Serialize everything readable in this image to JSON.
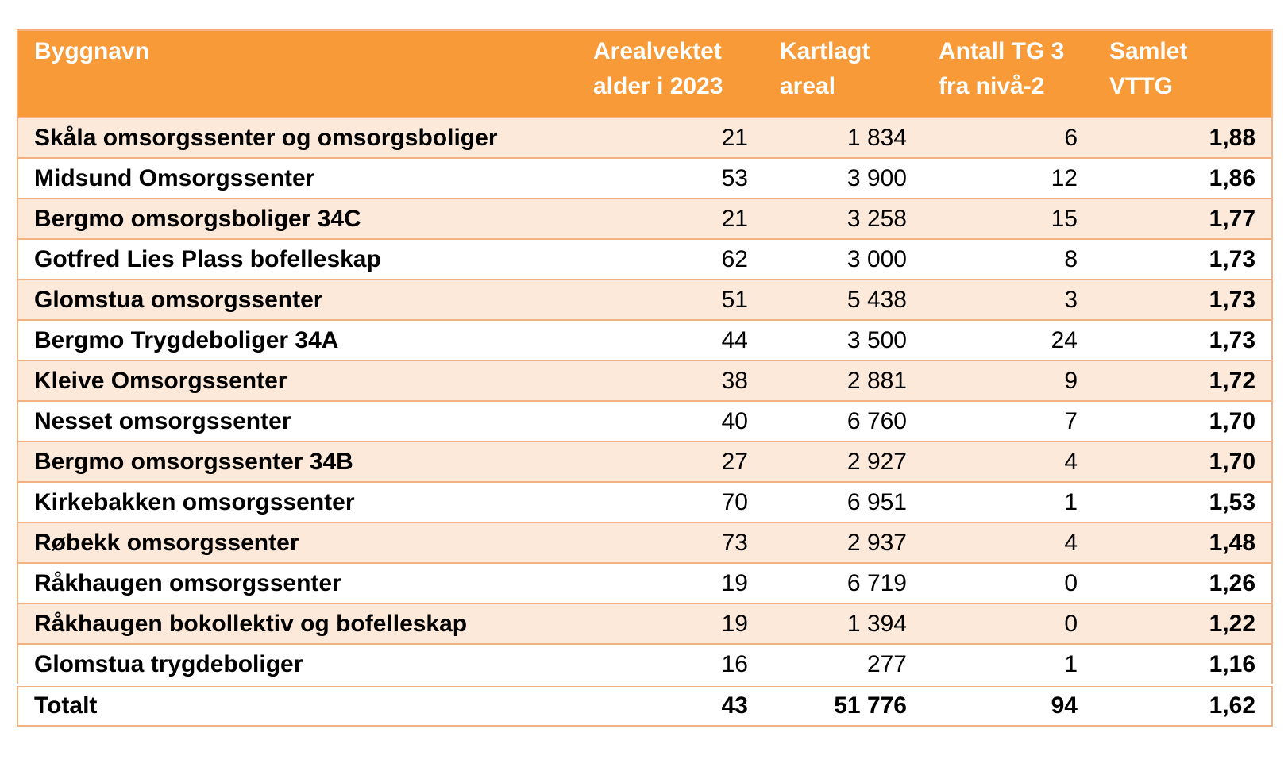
{
  "table": {
    "headers": [
      [
        "Byggnavn"
      ],
      [
        "Arealvektet",
        "alder i 2023"
      ],
      [
        "Kartlagt",
        "areal"
      ],
      [
        "Antall TG 3",
        "fra nivå-2"
      ],
      [
        "Samlet VTTG"
      ]
    ],
    "rows": [
      [
        "Skåla omsorgssenter og omsorgsboliger",
        "21",
        "1 834",
        "6",
        "1,88"
      ],
      [
        "Midsund Omsorgssenter",
        "53",
        "3 900",
        "12",
        "1,86"
      ],
      [
        "Bergmo omsorgsboliger 34C",
        "21",
        "3 258",
        "15",
        "1,77"
      ],
      [
        "Gotfred Lies Plass bofelleskap",
        "62",
        "3 000",
        "8",
        "1,73"
      ],
      [
        "Glomstua omsorgssenter",
        "51",
        "5 438",
        "3",
        "1,73"
      ],
      [
        "Bergmo Trygdeboliger 34A",
        "44",
        "3 500",
        "24",
        "1,73"
      ],
      [
        "Kleive Omsorgssenter",
        "38",
        "2 881",
        "9",
        "1,72"
      ],
      [
        "Nesset omsorgssenter",
        "40",
        "6 760",
        "7",
        "1,70"
      ],
      [
        "Bergmo omsorgssenter 34B",
        "27",
        "2 927",
        "4",
        "1,70"
      ],
      [
        "Kirkebakken omsorgssenter",
        "70",
        "6 951",
        "1",
        "1,53"
      ],
      [
        "Røbekk omsorgssenter",
        "73",
        "2 937",
        "4",
        "1,48"
      ],
      [
        "Råkhaugen omsorgssenter",
        "19",
        "6 719",
        "0",
        "1,26"
      ],
      [
        "Råkhaugen bokollektiv og bofelleskap",
        "19",
        "1 394",
        "0",
        "1,22"
      ],
      [
        "Glomstua trygdeboliger",
        "16",
        "277",
        "1",
        "1,16"
      ]
    ],
    "total": [
      "Totalt",
      "43",
      "51 776",
      "94",
      "1,62"
    ]
  },
  "colors": {
    "header_bg": "#f79a37",
    "row_alt_bg": "#fde9d9",
    "border": "#f4b183"
  }
}
